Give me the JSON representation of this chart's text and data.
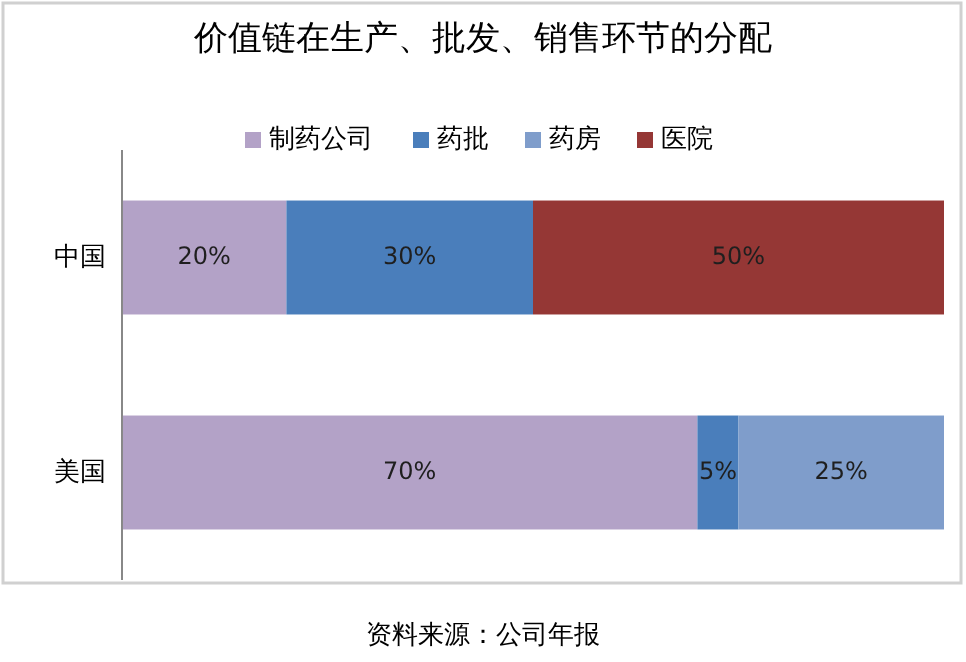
{
  "chart_data": {
    "type": "bar",
    "orientation": "horizontal",
    "stacked": true,
    "title": "价值链在生产、批发、销售环节的分配",
    "categories": [
      "中国",
      "美国"
    ],
    "xlim": [
      0,
      100
    ],
    "tick_labels": "y",
    "legend": "top",
    "series": [
      {
        "name": "制药公司",
        "color": "#b3a2c7",
        "values": [
          20,
          70
        ],
        "value_labels": [
          "20%",
          "70%"
        ]
      },
      {
        "name": "药批",
        "color": "#4a7ebb",
        "values": [
          30,
          5
        ],
        "value_labels": [
          "30%",
          "5%"
        ]
      },
      {
        "name": "药房",
        "color": "#7f9dcb",
        "values": [
          null,
          25
        ],
        "value_labels": [
          null,
          "25%"
        ]
      },
      {
        "name": "医院",
        "color": "#953735",
        "values": [
          50,
          null
        ],
        "value_labels": [
          "50%",
          null
        ]
      }
    ],
    "annotations": [
      "资料来源：公司年报"
    ]
  }
}
